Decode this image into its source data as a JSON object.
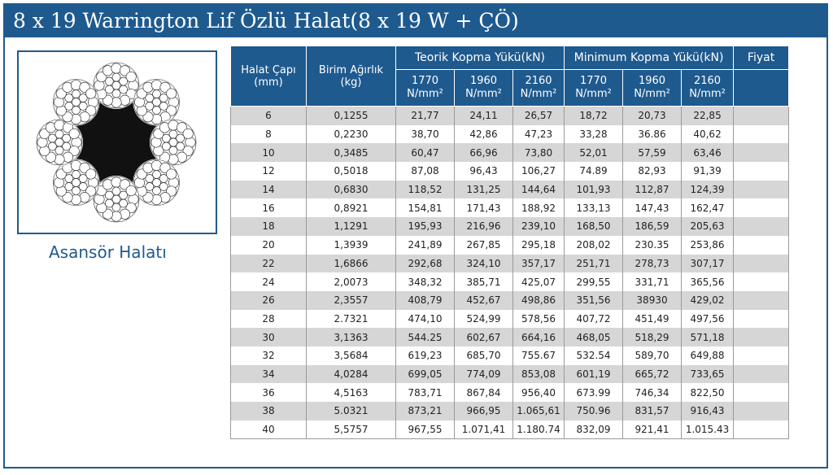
{
  "title": "8 x 19 Warrington Lif Özlü Halat(8 x 19 W + ÇÖ)",
  "image": {
    "caption": "Asansör Halatı"
  },
  "table": {
    "headers": {
      "diameter": "Halat Çapı (mm)",
      "weight": "Birim Ağırlık (kg)",
      "theoretical": "Teorik Kopma Yükü(kN)",
      "minimum": "Minimum Kopma Yükü(kN)",
      "price": "Fiyat",
      "grades": [
        "1770",
        "1960",
        "2160",
        "1770",
        "1960",
        "2160"
      ],
      "unit": "N/mm²"
    },
    "rows": [
      [
        "6",
        "0,1255",
        "21,77",
        "24,11",
        "26,57",
        "18,72",
        "20,73",
        "22,85",
        ""
      ],
      [
        "8",
        "0,2230",
        "38,70",
        "42,86",
        "47,23",
        "33,28",
        "36.86",
        "40,62",
        ""
      ],
      [
        "10",
        "0,3485",
        "60,47",
        "66,96",
        "73,80",
        "52,01",
        "57,59",
        "63,46",
        ""
      ],
      [
        "12",
        "0,5018",
        "87,08",
        "96,43",
        "106,27",
        "74.89",
        "82,93",
        "91,39",
        ""
      ],
      [
        "14",
        "0,6830",
        "118,52",
        "131,25",
        "144,64",
        "101,93",
        "112,87",
        "124,39",
        ""
      ],
      [
        "16",
        "0,8921",
        "154,81",
        "171,43",
        "188,92",
        "133,13",
        "147,43",
        "162,47",
        ""
      ],
      [
        "18",
        "1,1291",
        "195,93",
        "216,96",
        "239,10",
        "168,50",
        "186,59",
        "205,63",
        ""
      ],
      [
        "20",
        "1,3939",
        "241,89",
        "267,85",
        "295,18",
        "208,02",
        "230.35",
        "253,86",
        ""
      ],
      [
        "22",
        "1,6866",
        "292,68",
        "324,10",
        "357,17",
        "251,71",
        "278,73",
        "307,17",
        ""
      ],
      [
        "24",
        "2,0073",
        "348,32",
        "385,71",
        "425,07",
        "299,55",
        "331,71",
        "365,56",
        ""
      ],
      [
        "26",
        "2,3557",
        "408,79",
        "452,67",
        "498,86",
        "351,56",
        "38930",
        "429,02",
        ""
      ],
      [
        "28",
        "2.7321",
        "474,10",
        "524,99",
        "578,56",
        "407,72",
        "451,49",
        "497,56",
        ""
      ],
      [
        "30",
        "3,1363",
        "544.25",
        "602,67",
        "664,16",
        "468,05",
        "518,29",
        "571,18",
        ""
      ],
      [
        "32",
        "3,5684",
        "619,23",
        "685,70",
        "755.67",
        "532.54",
        "589,70",
        "649,88",
        ""
      ],
      [
        "34",
        "4,0284",
        "699,05",
        "774,09",
        "853,08",
        "601,19",
        "665,72",
        "733,65",
        ""
      ],
      [
        "36",
        "4,5163",
        "783,71",
        "867,84",
        "956,40",
        "673.99",
        "746,34",
        "822,50",
        ""
      ],
      [
        "38",
        "5.0321",
        "873,21",
        "966,95",
        "1.065,61",
        "750.96",
        "831,57",
        "916,43",
        ""
      ],
      [
        "40",
        "5,5757",
        "967,55",
        "1.071,41",
        "1.180.74",
        "832,09",
        "921,41",
        "1.015.43",
        ""
      ]
    ]
  }
}
